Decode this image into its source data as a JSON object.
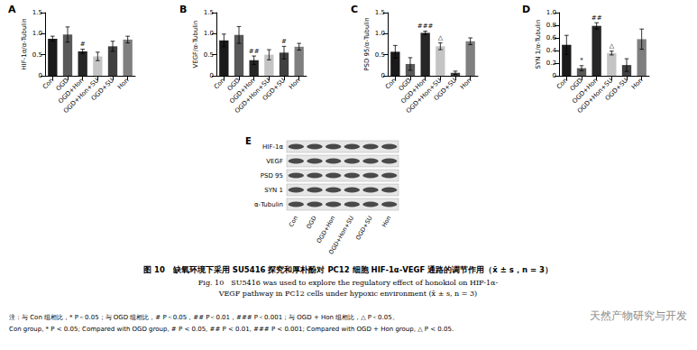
{
  "chart_data": [
    {
      "type": "bar",
      "title": "A",
      "y_label": "HIF-1α/α-Tubulin",
      "categories": [
        "Con",
        "OGD",
        "OGD+Hon",
        "OGD+Hon+SU",
        "OGD+SU",
        "Hon"
      ],
      "values": [
        0.88,
        0.98,
        0.58,
        0.46,
        0.7,
        0.86
      ],
      "errors": [
        0.06,
        0.18,
        0.05,
        0.1,
        0.12,
        0.08
      ],
      "annotations": [
        null,
        null,
        "#",
        null,
        null,
        null
      ],
      "colors": [
        "#1a1a1a",
        "#595959",
        "#262626",
        "#c4c4c4",
        "#404040",
        "#7f7f7f"
      ],
      "ylim": [
        0,
        1.5
      ],
      "yticks": [
        0,
        0.5,
        {
          "value": 1,
          "label": "1.0"
        },
        1.5
      ],
      "grid": false
    },
    {
      "type": "bar",
      "title": "B",
      "y_label": "VEGF/α-Tubulin",
      "categories": [
        "Con",
        "OGD",
        "OGD+Hon",
        "OGD+Hon+SU",
        "OGD+SU",
        "Hon"
      ],
      "values": [
        0.84,
        0.97,
        0.37,
        0.5,
        0.55,
        0.69
      ],
      "errors": [
        0.15,
        0.2,
        0.1,
        0.12,
        0.15,
        0.08
      ],
      "annotations": [
        null,
        null,
        "##",
        null,
        "#",
        null
      ],
      "colors": [
        "#1a1a1a",
        "#595959",
        "#262626",
        "#c4c4c4",
        "#404040",
        "#7f7f7f"
      ],
      "ylim": [
        0,
        1.5
      ],
      "yticks": [
        0,
        0.5,
        {
          "value": 1,
          "label": "1.0"
        },
        1.5
      ],
      "grid": false
    },
    {
      "type": "bar",
      "title": "C",
      "y_label": "PSD 95/α-Tubulin",
      "categories": [
        "Con",
        "OGD",
        "OGD+Hon",
        "OGD+Hon+SU",
        "OGD+SU",
        "Hon"
      ],
      "values": [
        0.57,
        0.28,
        1.02,
        0.7,
        0.07,
        0.82
      ],
      "errors": [
        0.15,
        0.15,
        0.04,
        0.08,
        0.04,
        0.08
      ],
      "annotations": [
        null,
        null,
        "###",
        "△",
        null,
        null
      ],
      "colors": [
        "#1a1a1a",
        "#595959",
        "#262626",
        "#c4c4c4",
        "#404040",
        "#7f7f7f"
      ],
      "ylim": [
        0,
        1.5
      ],
      "yticks": [
        0,
        0.5,
        {
          "value": 1,
          "label": "1.0"
        },
        1.5
      ],
      "grid": false
    },
    {
      "type": "bar",
      "title": "D",
      "y_label": "SYN 1/α-Tubulin",
      "categories": [
        "Con",
        "OGD",
        "OGD+Hon",
        "OGD+Hon+SU",
        "OGD+SU",
        "Hon"
      ],
      "values": [
        0.49,
        0.12,
        0.79,
        0.36,
        0.17,
        0.58
      ],
      "errors": [
        0.15,
        0.04,
        0.05,
        0.03,
        0.1,
        0.16
      ],
      "annotations": [
        null,
        "*",
        "##",
        "△",
        null,
        null
      ],
      "colors": [
        "#1a1a1a",
        "#595959",
        "#262626",
        "#c4c4c4",
        "#404040",
        "#7f7f7f"
      ],
      "ylim": [
        0,
        1
      ],
      "yticks": [
        0,
        0.2,
        0.4,
        0.6,
        0.8,
        {
          "value": 1,
          "label": "1.0"
        }
      ],
      "grid": false
    }
  ],
  "blot": {
    "panel": "E",
    "rows": [
      "HIF-1α",
      "VEGF",
      "PSD 95",
      "SYN 1",
      "α-Tubulin"
    ],
    "lanes": [
      "Con",
      "OGD",
      "OGD+Hon",
      "OGD+Hon+SU",
      "OGD+SU",
      "Hon"
    ]
  },
  "caption": {
    "zh": "图 10　缺氧环境下采用 SU5416 探究和厚朴酚对 PC12 细胞 HIF-1α-VEGF 通路的调节作用（x̄ ± s，n = 3）",
    "en": [
      "Fig. 10　SU5416 was used to explore the regulatory effect of honokiol on HIF-1α-",
      "VEGF pathway in PC12 cells under hypoxic environment (x̄ ± s, n = 3)"
    ],
    "notes": [
      "注：与 Con 组相比，* P＜0.05；与 OGD 组相比，# P＜0.05，## P＜0.01，### P＜0.001；与 OGD + Hon 组相比，△ P＜0.05。",
      "Con group, * P < 0.05; Compared with OGD group, # P < 0.05, ## P < 0.01, ### P < 0.001; Compared with OGD + Hon group, △ P < 0.05."
    ]
  },
  "watermark": "天然产物研究与开发"
}
